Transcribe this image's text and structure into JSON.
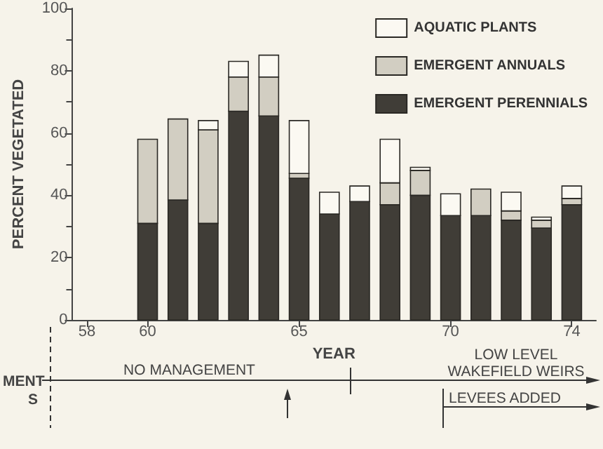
{
  "chart_data": {
    "type": "bar",
    "stacked": true,
    "xlabel": "YEAR",
    "ylabel": "PERCENT VEGETATED",
    "x": [
      60,
      61,
      62,
      63,
      64,
      65,
      66,
      67,
      68,
      69,
      70,
      71,
      72,
      73,
      74
    ],
    "series": [
      {
        "name": "EMERGENT PERENNIALS",
        "color": "#403d37",
        "values": [
          31,
          38.5,
          31,
          67,
          65.5,
          45.5,
          34,
          38,
          37,
          40,
          33.5,
          33.5,
          32,
          29.5,
          37
        ]
      },
      {
        "name": "EMERGENT ANNUALS",
        "color": "#d2cec2",
        "values": [
          27,
          26,
          30,
          11,
          12.5,
          1.5,
          0,
          0,
          7,
          8,
          0,
          8.5,
          3,
          2.5,
          2
        ]
      },
      {
        "name": "AQUATIC PLANTS",
        "color": "#fbf9f2",
        "values": [
          0,
          0,
          3,
          5,
          7,
          17,
          7,
          5,
          14,
          1,
          7,
          0,
          6,
          1,
          4
        ]
      }
    ],
    "xlim": [
      57.5,
      74.8
    ],
    "xticks": [
      58,
      60,
      65,
      70,
      74
    ],
    "ylim": [
      0,
      100
    ],
    "yticks": [
      0,
      20,
      40,
      60,
      80,
      100
    ],
    "grid": false,
    "legend": "top right",
    "annotations": [
      "NO MANAGEMENT",
      "LOW LEVEL WAKEFIELD WEIRS",
      "LEVEES ADDED",
      "MENT",
      "S"
    ]
  }
}
